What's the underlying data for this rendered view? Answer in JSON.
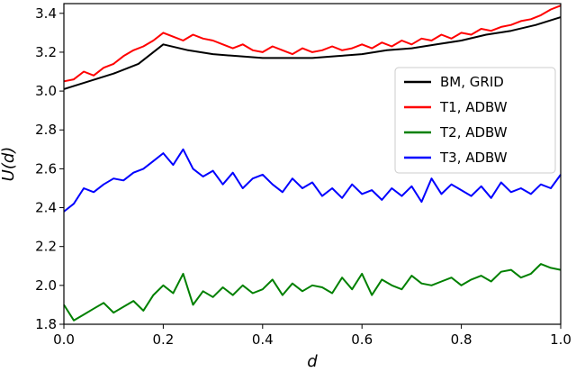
{
  "chart_data": {
    "type": "line",
    "xlabel": "d",
    "ylabel": "U(d)",
    "xlim": [
      0.0,
      1.0
    ],
    "ylim": [
      1.8,
      3.45
    ],
    "xticks": [
      "0.0",
      "0.2",
      "0.4",
      "0.6",
      "0.8",
      "1.0"
    ],
    "yticks": [
      "1.8",
      "2.0",
      "2.2",
      "2.4",
      "2.6",
      "2.8",
      "3.0",
      "3.2",
      "3.4"
    ],
    "grid": false,
    "legend_position": "right",
    "series": [
      {
        "name": "BM, GRID",
        "color": "#000000",
        "x": [
          0.0,
          0.05,
          0.1,
          0.15,
          0.2,
          0.25,
          0.3,
          0.35,
          0.4,
          0.45,
          0.5,
          0.55,
          0.6,
          0.65,
          0.7,
          0.75,
          0.8,
          0.85,
          0.9,
          0.95,
          1.0
        ],
        "y": [
          3.01,
          3.05,
          3.09,
          3.14,
          3.24,
          3.21,
          3.19,
          3.18,
          3.17,
          3.17,
          3.17,
          3.18,
          3.19,
          3.21,
          3.22,
          3.24,
          3.26,
          3.29,
          3.31,
          3.34,
          3.38
        ]
      },
      {
        "name": "T1, ADBW",
        "color": "#ff0000",
        "x": [
          0.0,
          0.02,
          0.04,
          0.06,
          0.08,
          0.1,
          0.12,
          0.14,
          0.16,
          0.18,
          0.2,
          0.22,
          0.24,
          0.26,
          0.28,
          0.3,
          0.32,
          0.34,
          0.36,
          0.38,
          0.4,
          0.42,
          0.44,
          0.46,
          0.48,
          0.5,
          0.52,
          0.54,
          0.56,
          0.58,
          0.6,
          0.62,
          0.64,
          0.66,
          0.68,
          0.7,
          0.72,
          0.74,
          0.76,
          0.78,
          0.8,
          0.82,
          0.84,
          0.86,
          0.88,
          0.9,
          0.92,
          0.94,
          0.96,
          0.98,
          1.0
        ],
        "y": [
          3.05,
          3.06,
          3.1,
          3.08,
          3.12,
          3.14,
          3.18,
          3.21,
          3.23,
          3.26,
          3.3,
          3.28,
          3.26,
          3.29,
          3.27,
          3.26,
          3.24,
          3.22,
          3.24,
          3.21,
          3.2,
          3.23,
          3.21,
          3.19,
          3.22,
          3.2,
          3.21,
          3.23,
          3.21,
          3.22,
          3.24,
          3.22,
          3.25,
          3.23,
          3.26,
          3.24,
          3.27,
          3.26,
          3.29,
          3.27,
          3.3,
          3.29,
          3.32,
          3.31,
          3.33,
          3.34,
          3.36,
          3.37,
          3.39,
          3.42,
          3.44
        ]
      },
      {
        "name": "T2, ADBW",
        "color": "#008000",
        "x": [
          0.0,
          0.02,
          0.04,
          0.06,
          0.08,
          0.1,
          0.12,
          0.14,
          0.16,
          0.18,
          0.2,
          0.22,
          0.24,
          0.26,
          0.28,
          0.3,
          0.32,
          0.34,
          0.36,
          0.38,
          0.4,
          0.42,
          0.44,
          0.46,
          0.48,
          0.5,
          0.52,
          0.54,
          0.56,
          0.58,
          0.6,
          0.62,
          0.64,
          0.66,
          0.68,
          0.7,
          0.72,
          0.74,
          0.76,
          0.78,
          0.8,
          0.82,
          0.84,
          0.86,
          0.88,
          0.9,
          0.92,
          0.94,
          0.96,
          0.98,
          1.0
        ],
        "y": [
          1.9,
          1.82,
          1.85,
          1.88,
          1.91,
          1.86,
          1.89,
          1.92,
          1.87,
          1.95,
          2.0,
          1.96,
          2.06,
          1.9,
          1.97,
          1.94,
          1.99,
          1.95,
          2.0,
          1.96,
          1.98,
          2.03,
          1.95,
          2.01,
          1.97,
          2.0,
          1.99,
          1.96,
          2.04,
          1.98,
          2.06,
          1.95,
          2.03,
          2.0,
          1.98,
          2.05,
          2.01,
          2.0,
          2.02,
          2.04,
          2.0,
          2.03,
          2.05,
          2.02,
          2.07,
          2.08,
          2.04,
          2.06,
          2.11,
          2.09,
          2.08
        ]
      },
      {
        "name": "T3, ADBW",
        "color": "#0000ff",
        "x": [
          0.0,
          0.02,
          0.04,
          0.06,
          0.08,
          0.1,
          0.12,
          0.14,
          0.16,
          0.18,
          0.2,
          0.22,
          0.24,
          0.26,
          0.28,
          0.3,
          0.32,
          0.34,
          0.36,
          0.38,
          0.4,
          0.42,
          0.44,
          0.46,
          0.48,
          0.5,
          0.52,
          0.54,
          0.56,
          0.58,
          0.6,
          0.62,
          0.64,
          0.66,
          0.68,
          0.7,
          0.72,
          0.74,
          0.76,
          0.78,
          0.8,
          0.82,
          0.84,
          0.86,
          0.88,
          0.9,
          0.92,
          0.94,
          0.96,
          0.98,
          1.0
        ],
        "y": [
          2.38,
          2.42,
          2.5,
          2.48,
          2.52,
          2.55,
          2.54,
          2.58,
          2.6,
          2.64,
          2.68,
          2.62,
          2.7,
          2.6,
          2.56,
          2.59,
          2.52,
          2.58,
          2.5,
          2.55,
          2.57,
          2.52,
          2.48,
          2.55,
          2.5,
          2.53,
          2.46,
          2.5,
          2.45,
          2.52,
          2.47,
          2.49,
          2.44,
          2.5,
          2.46,
          2.51,
          2.43,
          2.55,
          2.47,
          2.52,
          2.49,
          2.46,
          2.51,
          2.45,
          2.53,
          2.48,
          2.5,
          2.47,
          2.52,
          2.5,
          2.57
        ]
      }
    ]
  }
}
